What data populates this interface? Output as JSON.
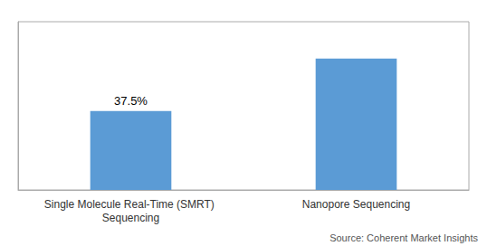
{
  "chart_data": {
    "type": "bar",
    "categories": [
      "Single Molecule Real-Time (SMRT) Sequencing",
      "Nanopore Sequencing"
    ],
    "values": [
      37.5,
      62.5
    ],
    "value_labels": [
      "37.5%",
      null
    ],
    "color": "#5B9BD5",
    "ylim": [
      0,
      80
    ],
    "grid": false,
    "tick_labels": "x",
    "source": "Source: Coherent Market Insights"
  }
}
